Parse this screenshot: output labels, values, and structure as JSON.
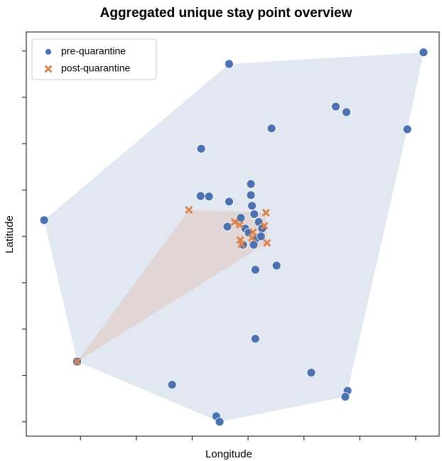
{
  "chart_data": {
    "type": "scatter",
    "title": "Aggregated unique stay point overview",
    "x_label": "Longitude",
    "y_label": "Latitude",
    "xlim": [
      0.03,
      7.42
    ],
    "ylim": [
      0.69,
      9.41
    ],
    "xticks": [
      1,
      2,
      3,
      4,
      5,
      6,
      7
    ],
    "yticks": [
      1,
      2,
      3,
      4,
      5,
      6,
      7,
      8,
      9
    ],
    "legend": "upper left",
    "convex_hull": true,
    "series": [
      {
        "name": "pre-quarantine",
        "color": "#4c72b0",
        "marker": "o",
        "x": [
          3.66,
          7.14,
          5.57,
          5.76,
          4.42,
          6.85,
          3.16,
          3.15,
          3.3,
          3.66,
          4.05,
          4.05,
          4.07,
          0.35,
          3.87,
          4.11,
          3.63,
          3.95,
          4.19,
          4.25,
          4.01,
          4.14,
          3.91,
          4.1,
          4.23,
          4.13,
          4.51,
          4.13,
          5.13,
          5.78,
          5.74,
          0.94,
          2.64,
          3.43,
          3.49
        ],
        "values": [
          8.72,
          8.97,
          7.8,
          7.68,
          7.33,
          7.31,
          6.89,
          5.87,
          5.86,
          5.75,
          6.13,
          5.89,
          5.66,
          5.35,
          5.4,
          5.48,
          5.21,
          5.17,
          5.31,
          5.17,
          5.08,
          4.95,
          4.82,
          4.82,
          5.0,
          4.28,
          4.37,
          2.79,
          2.06,
          1.67,
          1.54,
          2.3,
          1.8,
          1.12,
          1.0
        ]
      },
      {
        "name": "post-quarantine",
        "color": "#dd8452",
        "marker": "x",
        "x": [
          2.94,
          4.32,
          4.29,
          3.76,
          3.85,
          4.09,
          3.86,
          3.88,
          4.34,
          0.94,
          4.07
        ],
        "values": [
          5.57,
          5.51,
          5.23,
          5.31,
          5.25,
          5.09,
          4.92,
          4.83,
          4.86,
          2.3,
          4.97
        ]
      }
    ]
  }
}
